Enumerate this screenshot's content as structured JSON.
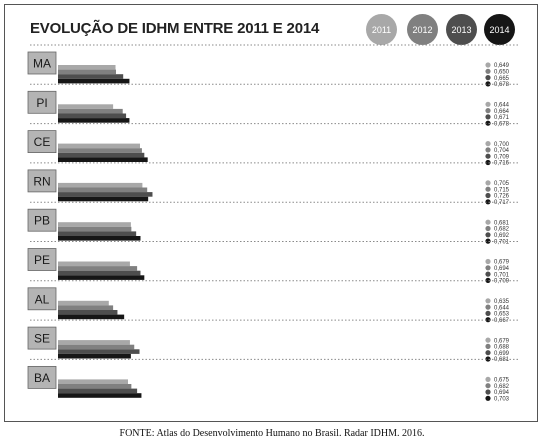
{
  "chart_data": {
    "type": "bar",
    "title": "EVOLUÇÃO DE IDHM ENTRE 2011 E 2014",
    "legend": {
      "placement": "top-right"
    },
    "categories": [
      "MA",
      "PI",
      "CE",
      "RN",
      "PB",
      "PE",
      "AL",
      "SE",
      "BA"
    ],
    "series": [
      {
        "name": "2011",
        "color": "#a8a8a8",
        "values": [
          0.649,
          0.644,
          0.7,
          0.705,
          0.681,
          0.679,
          0.635,
          0.679,
          0.675
        ],
        "labels": [
          "0,649",
          "0,644",
          "0,700",
          "0,705",
          "0,681",
          "0,679",
          "0,635",
          "0,679",
          "0,675"
        ]
      },
      {
        "name": "2012",
        "color": "#808080",
        "values": [
          0.65,
          0.664,
          0.704,
          0.715,
          0.682,
          0.694,
          0.644,
          0.688,
          0.682
        ],
        "labels": [
          "0,650",
          "0,664",
          "0,704",
          "0,715",
          "0,682",
          "0,694",
          "0,644",
          "0,688",
          "0,682"
        ]
      },
      {
        "name": "2013",
        "color": "#4e4e4e",
        "values": [
          0.665,
          0.671,
          0.709,
          0.726,
          0.692,
          0.701,
          0.653,
          0.699,
          0.694
        ],
        "labels": [
          "0,665",
          "0,671",
          "0,709",
          "0,726",
          "0,692",
          "0,701",
          "0,653",
          "0,699",
          "0,694"
        ]
      },
      {
        "name": "2014",
        "color": "#161616",
        "values": [
          0.678,
          0.678,
          0.716,
          0.717,
          0.701,
          0.709,
          0.667,
          0.681,
          0.703
        ],
        "labels": [
          "0,678",
          "0,678",
          "0,716",
          "0,717",
          "0,701",
          "0,709",
          "0,667",
          "0,681",
          "0,703"
        ]
      }
    ]
  },
  "source": "FONTE: Atlas do Desenvolvimento Humano no Brasil. Radar IDHM. 2016."
}
